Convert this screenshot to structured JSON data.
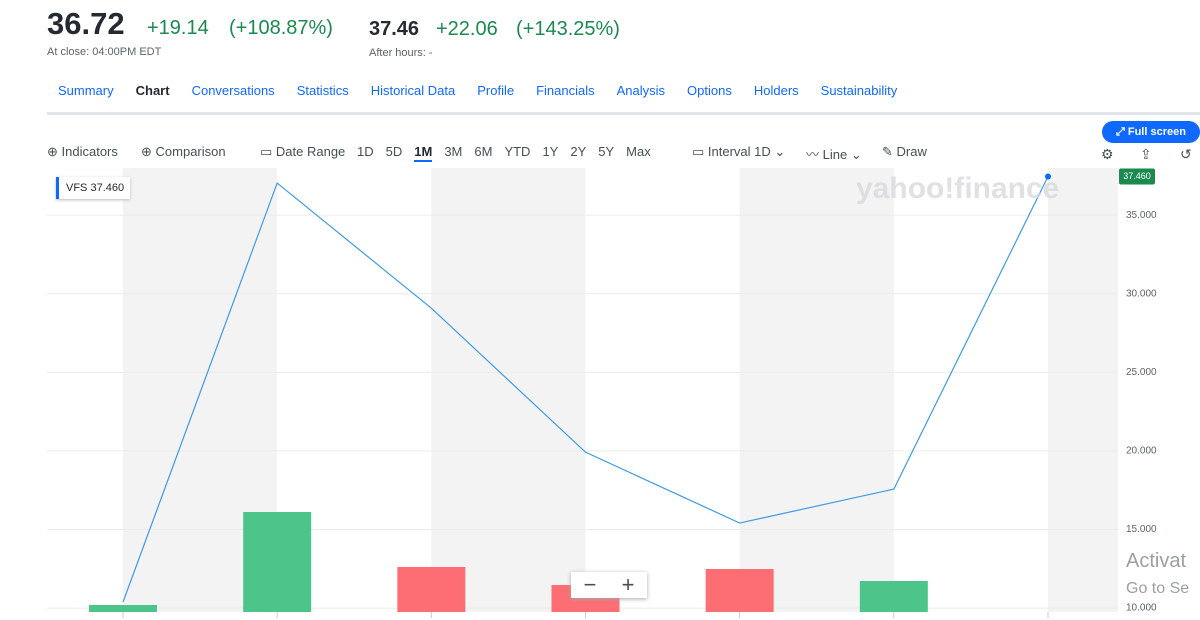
{
  "header": {
    "price": "36.72",
    "change": "+19.14",
    "change_pct": "(+108.87%)",
    "close_label": "At close: 04:00PM EDT",
    "after_price": "37.46",
    "after_change": "+22.06",
    "after_change_pct": "(+143.25%)",
    "after_label": "After hours: -"
  },
  "tabs": {
    "items": [
      "Summary",
      "Chart",
      "Conversations",
      "Statistics",
      "Historical Data",
      "Profile",
      "Financials",
      "Analysis",
      "Options",
      "Holders",
      "Sustainability"
    ],
    "active": "Chart"
  },
  "toolbar": {
    "indicators": "Indicators",
    "comparison": "Comparison",
    "date_range": "Date Range",
    "ranges": [
      "1D",
      "5D",
      "1M",
      "3M",
      "6M",
      "YTD",
      "1Y",
      "2Y",
      "5Y",
      "Max"
    ],
    "active_range": "1M",
    "interval": "Interval",
    "interval_value": "1D",
    "line": "Line",
    "draw": "Draw",
    "full_screen": "Full screen"
  },
  "zoom": [
    "−",
    "+"
  ],
  "overlay": [
    "Activat",
    "Go to Se"
  ],
  "chart_data": {
    "type": "line",
    "watermark": "yahoo!finance",
    "last_value_label": "37.460",
    "series": [
      {
        "name": "VFS",
        "color": "#3d9ae8",
        "values": [
          10.38,
          37.04,
          29.08,
          19.92,
          15.41,
          17.57,
          37.46
        ]
      }
    ],
    "volume": {
      "values": [
        7,
        100,
        45,
        27,
        43,
        31,
        null
      ],
      "ylim": [
        0,
        220
      ],
      "up_color": "#4cc48a",
      "down_color": "#fc6e73"
    },
    "ylim": [
      9.75,
      38
    ],
    "yticks": [
      {
        "value": 10,
        "label": "10.000"
      },
      {
        "value": 15,
        "label": "15.000"
      },
      {
        "value": 20,
        "label": "20.000"
      },
      {
        "value": 25,
        "label": "25.000"
      },
      {
        "value": 30,
        "label": "30.000"
      },
      {
        "value": 35,
        "label": "35.000"
      }
    ],
    "grid": true
  }
}
